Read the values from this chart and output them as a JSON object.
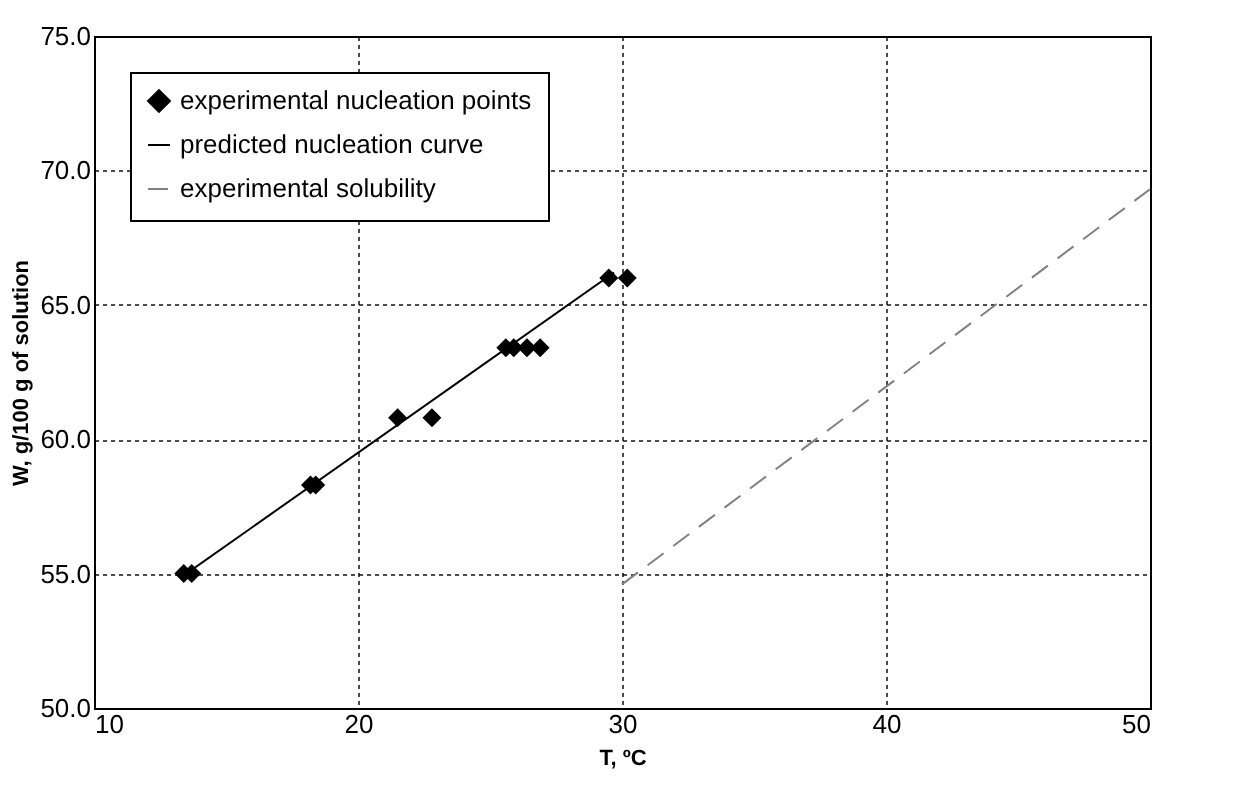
{
  "chart_data": {
    "type": "scatter",
    "xlabel": "T, ºC",
    "ylabel": "W, g/100 g of solution",
    "xlim": [
      10,
      50
    ],
    "xticks": [
      10,
      20,
      30,
      40,
      50
    ],
    "ylim": [
      50,
      75
    ],
    "yticks": [
      {
        "value": 50,
        "label": "50.0"
      },
      {
        "value": 55,
        "label": "55.0"
      },
      {
        "value": 60,
        "label": "60.0"
      },
      {
        "value": 65,
        "label": "65.0"
      },
      {
        "value": 70,
        "label": "70.0"
      },
      {
        "value": 75,
        "label": "75.0"
      }
    ],
    "grid": true,
    "legend": "top left",
    "series": [
      {
        "name": "experimental nucleation points",
        "marker": "diamond",
        "color": "#000000",
        "x": [
          13.4,
          13.7,
          18.2,
          18.4,
          21.5,
          22.8,
          25.6,
          25.9,
          26.4,
          26.9,
          29.5,
          30.2
        ],
        "values": [
          55.0,
          55.0,
          58.3,
          58.3,
          60.8,
          60.8,
          63.4,
          63.4,
          63.4,
          63.4,
          66.0,
          66.0
        ]
      },
      {
        "name": "predicted nucleation curve",
        "type": "line",
        "marker": "none",
        "line_style": "solid",
        "color": "#000000",
        "x": [
          13.5,
          29.7
        ],
        "values": [
          55.0,
          66.2
        ]
      },
      {
        "name": "experimental solubility",
        "type": "line",
        "marker": "none",
        "line_style": "dashed",
        "color": "#808080",
        "x": [
          30.0,
          50.0
        ],
        "values": [
          54.6,
          69.3
        ]
      }
    ]
  }
}
